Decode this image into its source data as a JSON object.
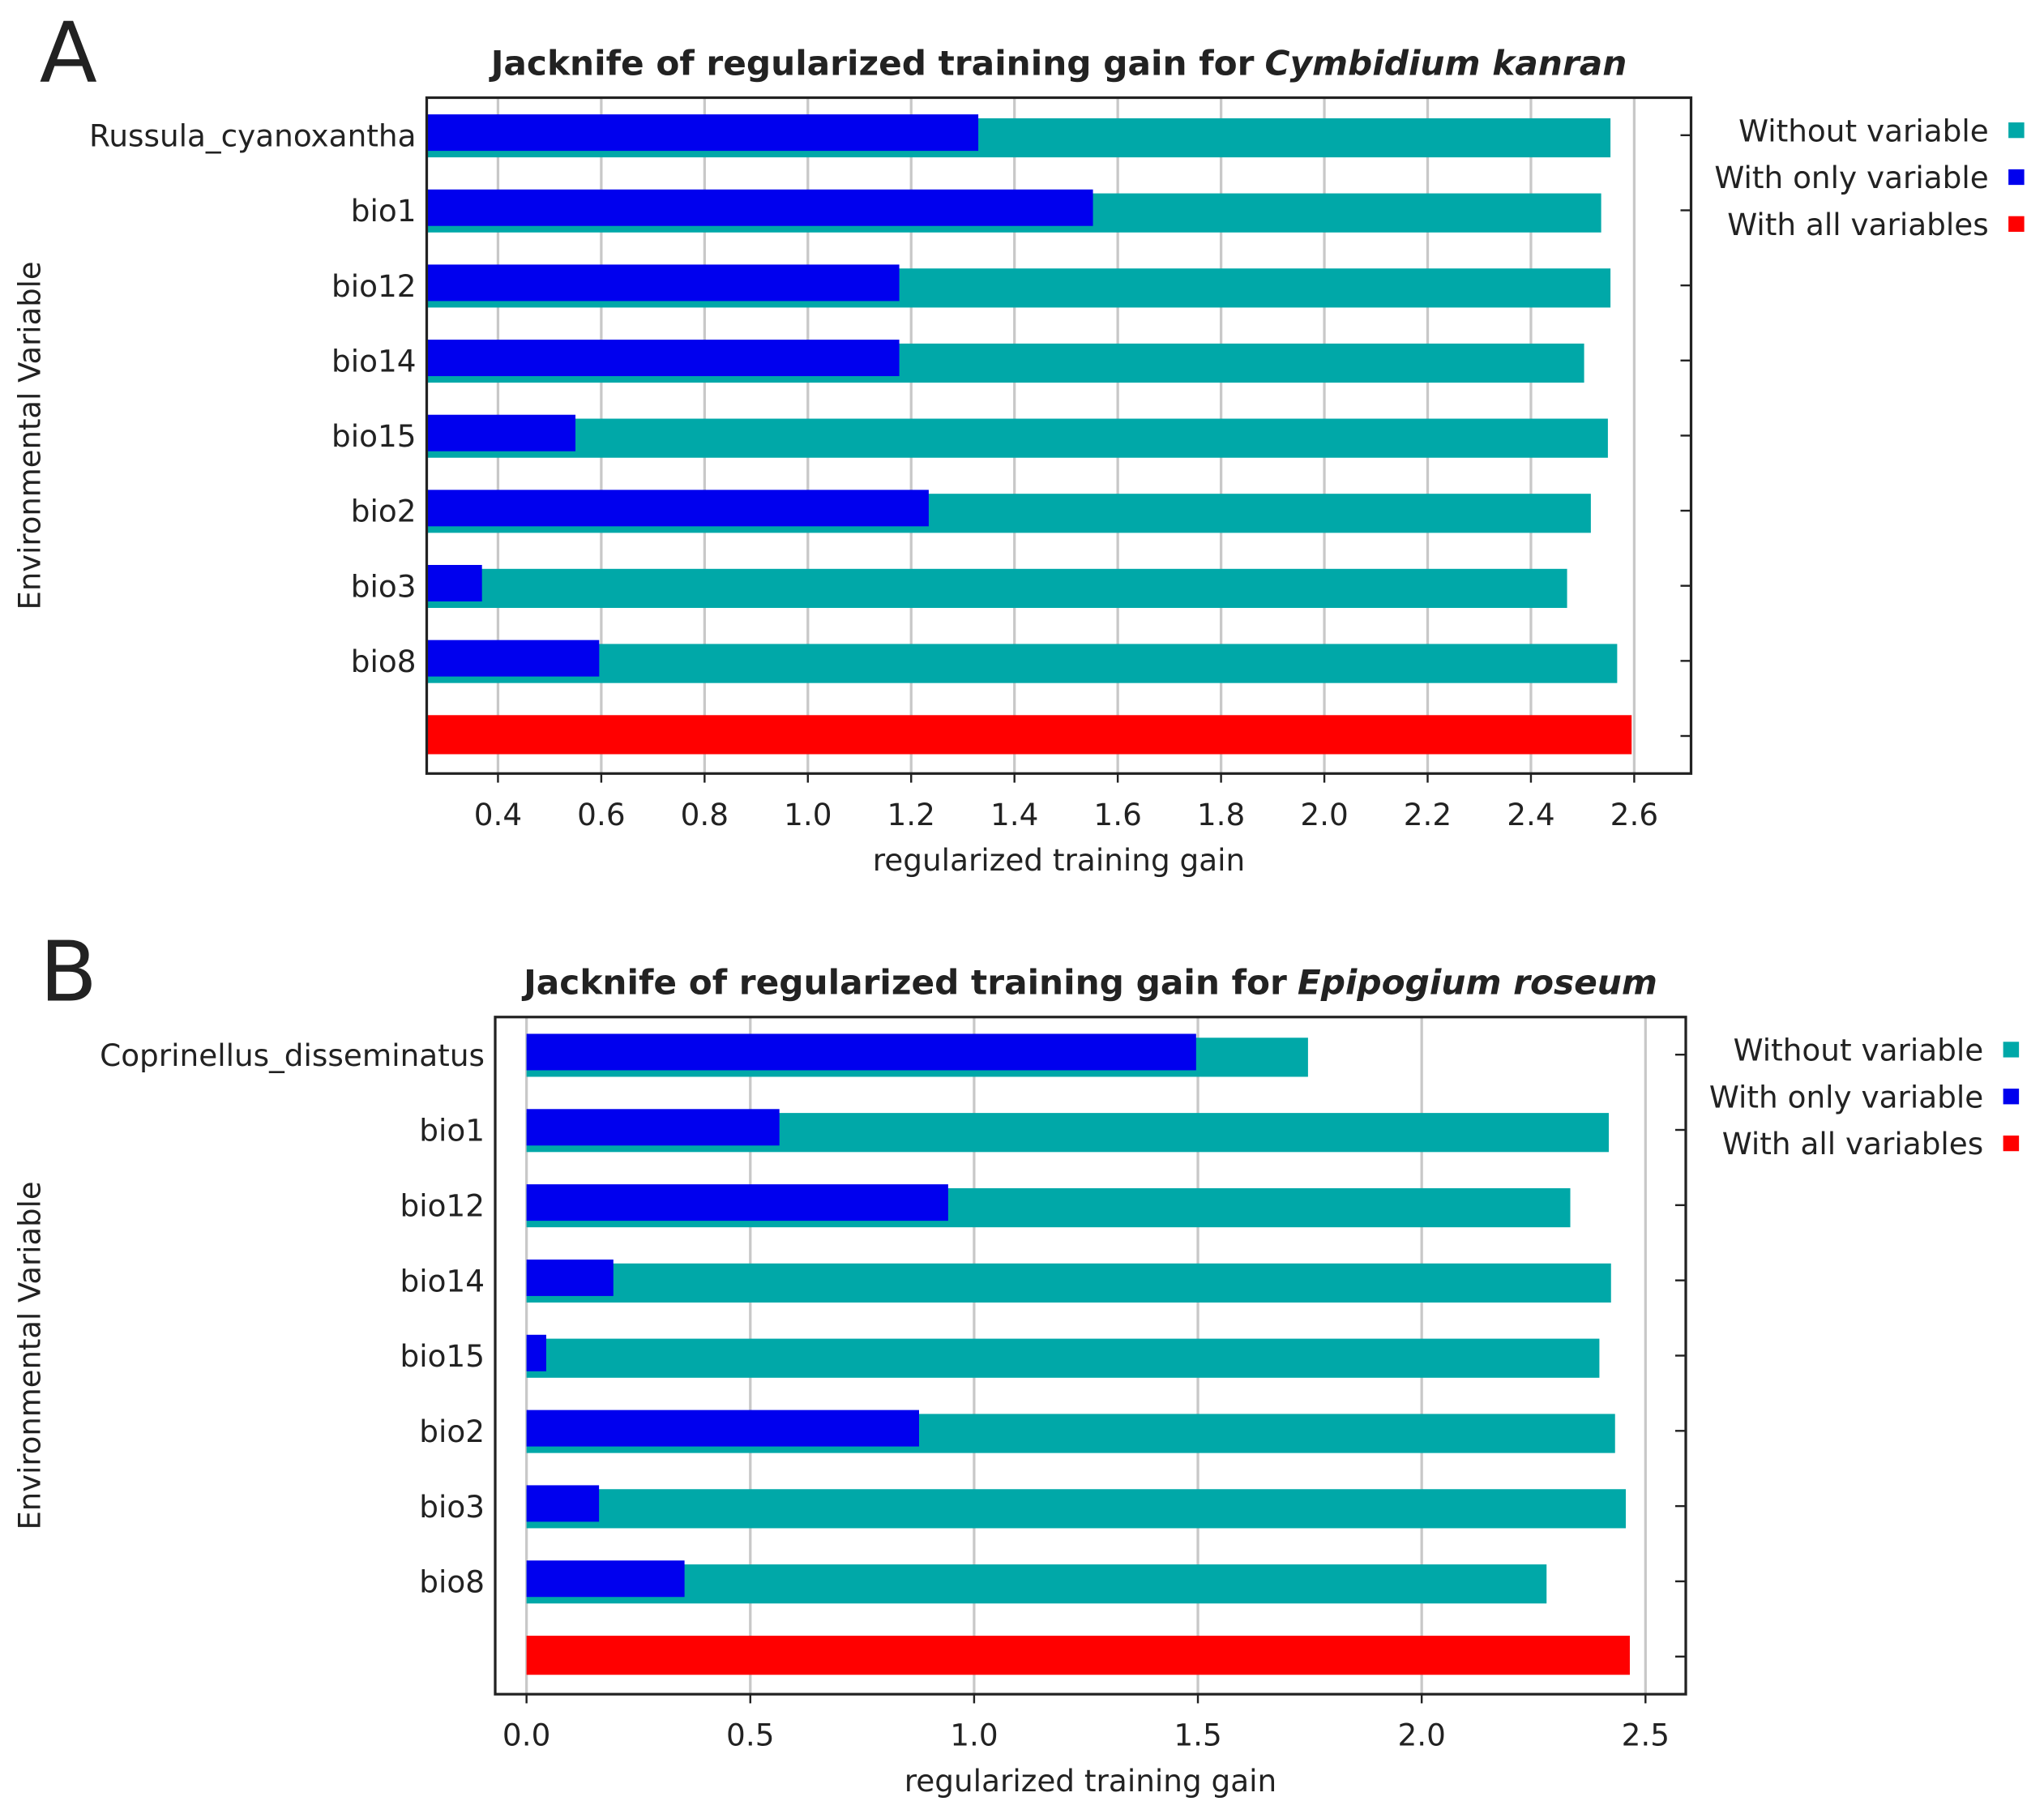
{
  "chart_data": [
    {
      "type": "bar",
      "orientation": "horizontal",
      "panel": "A",
      "title": "Jacknife of regularized training gain for",
      "title_species": "Cymbidium kanran",
      "x_label": "regularized training gain",
      "y_label": "Environmental Variable",
      "categories": [
        "Russula_cyanoxantha",
        "bio1",
        "bio12",
        "bio14",
        "bio15",
        "bio2",
        "bio3",
        "bio8",
        null
      ],
      "series": [
        {
          "name": "Without variable",
          "color": "#00a8a8",
          "values": [
            2.554,
            2.536,
            2.554,
            2.503,
            2.549,
            2.516,
            2.47,
            2.567,
            null
          ]
        },
        {
          "name": "With only variable",
          "color": "#0000ee",
          "values": [
            1.33,
            1.552,
            1.177,
            1.177,
            0.55,
            1.234,
            0.369,
            0.596,
            null
          ]
        },
        {
          "name": "With all variables",
          "color": "#ff0000",
          "values": [
            null,
            null,
            null,
            null,
            null,
            null,
            null,
            null,
            2.595
          ]
        }
      ],
      "xlim": [
        0.262,
        2.71
      ],
      "xticks": [
        0.4,
        0.6,
        0.8,
        {
          "value": 1.0,
          "label": "1.0"
        },
        1.2,
        1.4,
        1.6,
        1.8,
        {
          "value": 2.0,
          "label": "2.0"
        },
        2.2,
        2.4,
        2.6
      ],
      "grid": true,
      "legend": "right"
    },
    {
      "type": "bar",
      "orientation": "horizontal",
      "panel": "B",
      "title": "Jacknife of regularized training gain for",
      "title_species": "Epipogium roseum",
      "x_label": "regularized training gain",
      "y_label": "Environmental Variable",
      "categories": [
        "Coprinellus_disseminatus",
        "bio1",
        "bio12",
        "bio14",
        "bio15",
        "bio2",
        "bio3",
        "bio8",
        null
      ],
      "series": [
        {
          "name": "Without variable",
          "color": "#00a8a8",
          "values": [
            1.746,
            2.418,
            2.332,
            2.423,
            2.397,
            2.432,
            2.456,
            2.279,
            null
          ]
        },
        {
          "name": "With only variable",
          "color": "#0000ee",
          "values": [
            1.496,
            0.565,
            0.942,
            0.194,
            0.044,
            0.877,
            0.162,
            0.353,
            null
          ]
        },
        {
          "name": "With all variables",
          "color": "#ff0000",
          "values": [
            null,
            null,
            null,
            null,
            null,
            null,
            null,
            null,
            2.465
          ]
        }
      ],
      "xlim": [
        -0.07,
        2.59
      ],
      "xticks": [
        {
          "value": 0.0,
          "label": "0.0"
        },
        0.5,
        {
          "value": 1.0,
          "label": "1.0"
        },
        1.5,
        {
          "value": 2.0,
          "label": "2.0"
        },
        2.5
      ],
      "grid": true,
      "legend": "right"
    }
  ]
}
